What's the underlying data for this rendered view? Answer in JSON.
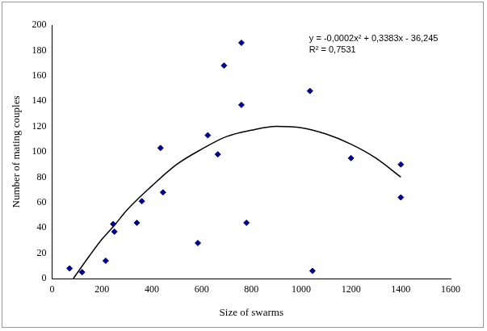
{
  "chart_data": {
    "type": "scatter",
    "x_label": "Size of swarms",
    "y_label": "Number of mating couples",
    "annotations": [
      "y = -0,0002x² + 0,3383x - 36,245",
      "R² = 0,7531"
    ],
    "xlim": [
      0,
      1600
    ],
    "xticks": [
      0,
      200,
      400,
      600,
      800,
      1000,
      1200,
      1400,
      1600
    ],
    "ylim": [
      0,
      200
    ],
    "yticks": [
      0,
      20,
      40,
      60,
      80,
      100,
      120,
      140,
      160,
      180,
      200
    ],
    "grid": false,
    "series": [
      {
        "type": "scatter",
        "color": "#00008b",
        "marker": "diamond",
        "x": [
          70,
          120,
          215,
          245,
          250,
          340,
          360,
          435,
          445,
          585,
          625,
          665,
          690,
          760,
          760,
          780,
          1035,
          1045,
          1200,
          1400,
          1400
        ],
        "values": [
          8,
          5,
          14,
          43,
          37,
          44,
          61,
          103,
          68,
          28,
          113,
          98,
          168,
          186,
          137,
          44,
          148,
          6,
          95,
          90,
          64
        ]
      },
      {
        "type": "line",
        "color": "#000000",
        "line_style": "solid",
        "x": [
          85,
          150,
          200,
          250,
          300,
          400,
          500,
          600,
          700,
          800,
          900,
          1000,
          1100,
          1200,
          1300,
          1400
        ],
        "values": [
          0,
          18,
          31,
          42,
          54,
          73,
          90,
          102,
          112,
          117,
          120,
          119,
          114,
          106,
          95,
          80
        ]
      }
    ]
  }
}
